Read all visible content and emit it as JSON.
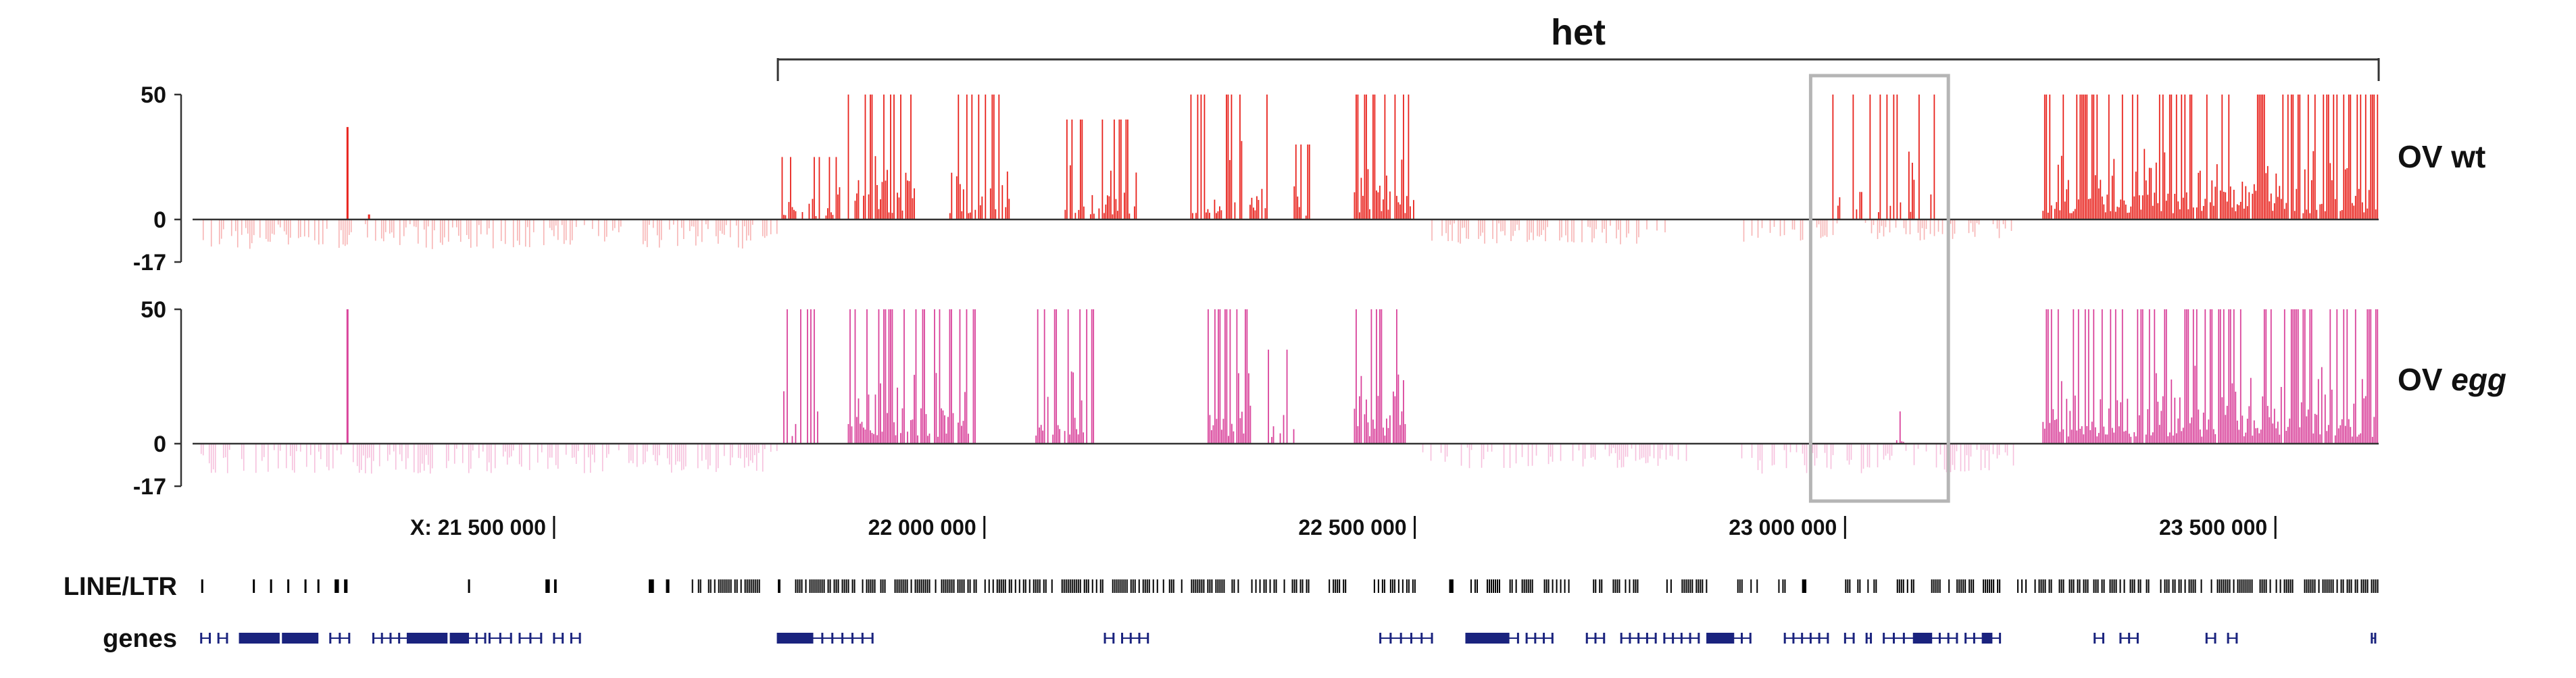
{
  "chart_data": {
    "type": "genome-browser-bar",
    "x_range_bp": [
      21080000,
      23620000
    ],
    "bracket": {
      "label": "het",
      "start": 21760000,
      "end": 23620000
    },
    "highlight_region": [
      22960000,
      23120000
    ],
    "x_ticks": [
      {
        "value": 21500000,
        "label": "X: 21 500 000"
      },
      {
        "value": 22000000,
        "label": "22 000 000"
      },
      {
        "value": 22500000,
        "label": "22 500 000"
      },
      {
        "value": 23000000,
        "label": "23 000 000"
      },
      {
        "value": 23500000,
        "label": "23 500 000"
      }
    ],
    "tracks": [
      {
        "name": "OV wt",
        "name_plain": "OV",
        "name_italic": "wt",
        "italic": false,
        "color": "#e8221c",
        "neg_color": "#f7b3b3",
        "ylim": [
          -17,
          50
        ],
        "y_ticks": [
          "50",
          "0",
          "-17"
        ],
        "positive_bins": [
          {
            "start": 21260000,
            "end": 21262000,
            "value": 37
          },
          {
            "start": 21285000,
            "end": 21295000,
            "value": 2
          },
          {
            "start": 21765000,
            "end": 21835000,
            "value": 25,
            "density": 0.6
          },
          {
            "start": 21840000,
            "end": 21920000,
            "value": 50,
            "density": 0.7
          },
          {
            "start": 21960000,
            "end": 22030000,
            "value": 50,
            "density": 0.7
          },
          {
            "start": 22090000,
            "end": 22180000,
            "value": 40,
            "density": 0.7
          },
          {
            "start": 22240000,
            "end": 22330000,
            "value": 50,
            "density": 0.7
          },
          {
            "start": 22360000,
            "end": 22380000,
            "value": 30,
            "density": 0.4
          },
          {
            "start": 22430000,
            "end": 22500000,
            "value": 50,
            "density": 0.9
          },
          {
            "start": 22980000,
            "end": 23120000,
            "value": 50,
            "density": 0.25
          },
          {
            "start": 23230000,
            "end": 23620000,
            "value": 50,
            "density": 0.95
          }
        ],
        "negative_bins": [
          {
            "start": 21090000,
            "end": 21760000,
            "value": -12,
            "density": 0.55
          },
          {
            "start": 22520000,
            "end": 22800000,
            "value": -10,
            "density": 0.5
          },
          {
            "start": 22880000,
            "end": 23200000,
            "value": -9,
            "density": 0.4
          }
        ]
      },
      {
        "name": "OV egg",
        "name_plain": "OV",
        "name_italic": "egg",
        "italic": true,
        "color": "#d9439b",
        "neg_color": "#f6bfdc",
        "ylim": [
          -17,
          50
        ],
        "y_ticks": [
          "50",
          "0",
          "-17"
        ],
        "positive_bins": [
          {
            "start": 21260000,
            "end": 21262000,
            "value": 50
          },
          {
            "start": 21765000,
            "end": 21810000,
            "value": 50,
            "density": 0.5
          },
          {
            "start": 21840000,
            "end": 21990000,
            "value": 50,
            "density": 0.85
          },
          {
            "start": 22060000,
            "end": 22130000,
            "value": 50,
            "density": 0.8
          },
          {
            "start": 22260000,
            "end": 22310000,
            "value": 50,
            "density": 0.9
          },
          {
            "start": 22330000,
            "end": 22360000,
            "value": 35,
            "density": 0.5
          },
          {
            "start": 22430000,
            "end": 22490000,
            "value": 50,
            "density": 0.9
          },
          {
            "start": 23060000,
            "end": 23070000,
            "value": 12,
            "density": 0.5
          },
          {
            "start": 23230000,
            "end": 23620000,
            "value": 50,
            "density": 0.97
          }
        ],
        "negative_bins": [
          {
            "start": 21090000,
            "end": 21760000,
            "value": -12,
            "density": 0.55
          },
          {
            "start": 22500000,
            "end": 22820000,
            "value": -10,
            "density": 0.5
          },
          {
            "start": 22880000,
            "end": 23200000,
            "value": -12,
            "density": 0.45
          }
        ]
      }
    ],
    "annotation_tracks": [
      {
        "name": "LINE/LTR",
        "color": "#000000",
        "segments": [
          [
            21090000,
            21092000
          ],
          [
            21150000,
            21152000
          ],
          [
            21170000,
            21172000
          ],
          [
            21190000,
            21192000
          ],
          [
            21210000,
            21212000
          ],
          [
            21225000,
            21227000
          ],
          [
            21245000,
            21250000
          ],
          [
            21256000,
            21260000
          ],
          [
            21400000,
            21402000
          ],
          [
            21490000,
            21495000
          ],
          [
            21500000,
            21503000
          ],
          [
            21610000,
            21616000
          ],
          [
            21630000,
            21634000
          ],
          [
            21660000,
            21700000
          ],
          [
            21700000,
            21740000
          ],
          [
            21760000,
            21763000
          ],
          [
            21780000,
            21990000
          ],
          [
            22000000,
            22230000
          ],
          [
            22240000,
            22300000
          ],
          [
            22310000,
            22380000
          ],
          [
            22400000,
            22420000
          ],
          [
            22450000,
            22500000
          ],
          [
            22540000,
            22545000
          ],
          [
            22560000,
            22600000
          ],
          [
            22610000,
            22640000
          ],
          [
            22650000,
            22680000
          ],
          [
            22700000,
            22720000
          ],
          [
            22730000,
            22760000
          ],
          [
            22790000,
            22800000
          ],
          [
            22810000,
            22840000
          ],
          [
            22870000,
            22880000
          ],
          [
            22890000,
            22900000
          ],
          [
            22920000,
            22930000
          ],
          [
            22950000,
            22955000
          ],
          [
            23000000,
            23040000
          ],
          [
            23060000,
            23080000
          ],
          [
            23100000,
            23110000
          ],
          [
            23120000,
            23150000
          ],
          [
            23160000,
            23180000
          ],
          [
            23200000,
            23210000
          ],
          [
            23220000,
            23620000
          ]
        ]
      },
      {
        "name": "genes",
        "color": "#1a237e",
        "segments": [
          [
            21090000,
            21100000
          ],
          [
            21110000,
            21120000
          ],
          [
            21135000,
            21180000
          ],
          [
            21185000,
            21225000
          ],
          [
            21240000,
            21262000
          ],
          [
            21290000,
            21330000
          ],
          [
            21335000,
            21375000
          ],
          [
            21380000,
            21420000
          ],
          [
            21425000,
            21450000
          ],
          [
            21460000,
            21485000
          ],
          [
            21500000,
            21510000
          ],
          [
            21520000,
            21530000
          ],
          [
            21760000,
            21800000
          ],
          [
            21800000,
            21870000
          ],
          [
            22140000,
            22150000
          ],
          [
            22160000,
            22190000
          ],
          [
            22460000,
            22520000
          ],
          [
            22560000,
            22620000
          ],
          [
            22630000,
            22660000
          ],
          [
            22700000,
            22720000
          ],
          [
            22740000,
            22780000
          ],
          [
            22790000,
            22830000
          ],
          [
            22840000,
            22890000
          ],
          [
            22930000,
            22980000
          ],
          [
            23000000,
            23010000
          ],
          [
            23025000,
            23030000
          ],
          [
            23045000,
            23080000
          ],
          [
            23090000,
            23130000
          ],
          [
            23140000,
            23160000
          ],
          [
            23170000,
            23180000
          ],
          [
            23290000,
            23300000
          ],
          [
            23320000,
            23340000
          ],
          [
            23420000,
            23430000
          ],
          [
            23445000,
            23455000
          ],
          [
            23612000,
            23616000
          ]
        ],
        "blocks": [
          [
            21135000,
            21180000
          ],
          [
            21185000,
            21225000
          ],
          [
            21330000,
            21375000
          ],
          [
            21380000,
            21400000
          ],
          [
            21760000,
            21800000
          ],
          [
            22560000,
            22610000
          ],
          [
            22840000,
            22870000
          ],
          [
            23080000,
            23100000
          ],
          [
            23160000,
            23170000
          ]
        ]
      }
    ]
  }
}
